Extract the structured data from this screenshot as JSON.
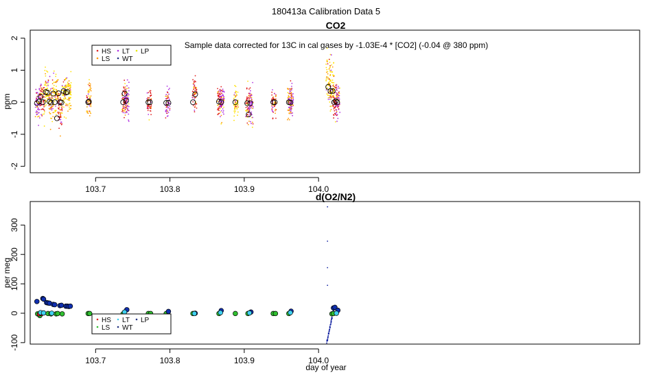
{
  "figure": {
    "title": "180413a   Calibration Data 5",
    "xlabel": "day of year"
  },
  "legend_items": [
    {
      "label": "HS",
      "color": "#e02020"
    },
    {
      "label": "LS",
      "color": "#30c030"
    },
    {
      "label": "LT",
      "color": "#40d0f0"
    },
    {
      "label": "WT",
      "color": "#203080"
    },
    {
      "label": "LP",
      "color": "#e8e800"
    }
  ],
  "chart_data": [
    {
      "type": "scatter",
      "title": "CO2",
      "ylabel": "ppm",
      "annotation": "Sample data corrected for 13C in cal gases by -1.03E-4 * [CO2] (-0.04 @ 380 ppm)",
      "xlim": [
        103.612,
        104.432
      ],
      "ylim": [
        -2.2,
        2.25
      ],
      "x_ticks": [
        103.7,
        103.8,
        103.9,
        104.0
      ],
      "y_ticks": [
        -2,
        -1,
        0,
        1,
        2
      ],
      "x_tick_labels": [
        "103.7",
        "103.8",
        "103.9",
        "104.0"
      ],
      "y_tick_labels": [
        "-2",
        "-1",
        "0",
        "1",
        "2"
      ],
      "point_colors": {
        "HS": "#e02020",
        "LS": "#ff9900",
        "LT": "#b030e0",
        "LP": "#ffe000"
      },
      "clusters": [
        {
          "x": 103.622,
          "center": 0.0,
          "spread": 0.55,
          "color": "#b030e0"
        },
        {
          "x": 103.628,
          "center": 0.1,
          "spread": 0.55,
          "color": "#e02020"
        },
        {
          "x": 103.634,
          "center": 0.3,
          "spread": 0.6,
          "color": "#ffe000"
        },
        {
          "x": 103.64,
          "center": 0.0,
          "spread": 0.5,
          "color": "#ff9900"
        },
        {
          "x": 103.646,
          "center": 0.25,
          "spread": 0.6,
          "color": "#ffe000"
        },
        {
          "x": 103.652,
          "center": -0.2,
          "spread": 0.6,
          "color": "#e02020"
        },
        {
          "x": 103.658,
          "center": 0.3,
          "spread": 0.6,
          "color": "#ffe000"
        },
        {
          "x": 103.664,
          "center": 0.3,
          "spread": 0.55,
          "color": "#ffe000"
        },
        {
          "x": 103.691,
          "center": 0.1,
          "spread": 0.45,
          "color": "#ff9900"
        },
        {
          "x": 103.738,
          "center": 0.05,
          "spread": 0.5,
          "color": "#e02020"
        },
        {
          "x": 103.742,
          "center": 0.1,
          "spread": 0.5,
          "color": "#b030e0"
        },
        {
          "x": 103.772,
          "center": 0.0,
          "spread": 0.4,
          "color": "#e02020"
        },
        {
          "x": 103.797,
          "center": 0.0,
          "spread": 0.45,
          "color": "#b030e0"
        },
        {
          "x": 103.833,
          "center": 0.2,
          "spread": 0.55,
          "color": "#e02020"
        },
        {
          "x": 103.867,
          "center": 0.0,
          "spread": 0.45,
          "color": "#e02020"
        },
        {
          "x": 103.87,
          "center": 0.0,
          "spread": 0.45,
          "color": "#b030e0"
        },
        {
          "x": 103.889,
          "center": 0.0,
          "spread": 0.4,
          "color": "#ffe000"
        },
        {
          "x": 103.905,
          "center": -0.1,
          "spread": 0.55,
          "color": "#e02020"
        },
        {
          "x": 103.909,
          "center": -0.1,
          "spread": 0.55,
          "color": "#b030e0"
        },
        {
          "x": 103.94,
          "center": 0.0,
          "spread": 0.4,
          "color": "#e02020"
        },
        {
          "x": 103.961,
          "center": 0.0,
          "spread": 0.45,
          "color": "#ff9900"
        },
        {
          "x": 103.963,
          "center": 0.0,
          "spread": 0.45,
          "color": "#b030e0"
        },
        {
          "x": 104.013,
          "center": 0.6,
          "spread": 0.8,
          "color": "#ffe000"
        },
        {
          "x": 104.018,
          "center": 0.5,
          "spread": 0.7,
          "color": "#ffe000"
        },
        {
          "x": 104.022,
          "center": 0.0,
          "spread": 0.5,
          "color": "#e02020"
        },
        {
          "x": 104.026,
          "center": 0.0,
          "spread": 0.5,
          "color": "#b030e0"
        }
      ],
      "means": [
        {
          "x": 103.621,
          "y": -0.03
        },
        {
          "x": 103.624,
          "y": 0.02
        },
        {
          "x": 103.626,
          "y": 0.17
        },
        {
          "x": 103.629,
          "y": 0.0
        },
        {
          "x": 103.633,
          "y": 0.32
        },
        {
          "x": 103.635,
          "y": 0.3
        },
        {
          "x": 103.638,
          "y": 0.02
        },
        {
          "x": 103.64,
          "y": -0.01
        },
        {
          "x": 103.643,
          "y": 0.27
        },
        {
          "x": 103.645,
          "y": 0.0
        },
        {
          "x": 103.648,
          "y": -0.5
        },
        {
          "x": 103.65,
          "y": 0.28
        },
        {
          "x": 103.652,
          "y": 0.0
        },
        {
          "x": 103.654,
          "y": -0.01
        },
        {
          "x": 103.657,
          "y": 0.35
        },
        {
          "x": 103.66,
          "y": 0.3
        },
        {
          "x": 103.662,
          "y": 0.32
        },
        {
          "x": 103.69,
          "y": 0.0
        },
        {
          "x": 103.691,
          "y": 0.02
        },
        {
          "x": 103.737,
          "y": 0.0
        },
        {
          "x": 103.739,
          "y": 0.27
        },
        {
          "x": 103.741,
          "y": 0.05
        },
        {
          "x": 103.771,
          "y": 0.0
        },
        {
          "x": 103.773,
          "y": 0.0
        },
        {
          "x": 103.795,
          "y": -0.02
        },
        {
          "x": 103.798,
          "y": -0.02
        },
        {
          "x": 103.831,
          "y": 0.0
        },
        {
          "x": 103.834,
          "y": 0.25
        },
        {
          "x": 103.866,
          "y": 0.02
        },
        {
          "x": 103.869,
          "y": 0.0
        },
        {
          "x": 103.888,
          "y": 0.0
        },
        {
          "x": 103.904,
          "y": -0.03
        },
        {
          "x": 103.906,
          "y": -0.38
        },
        {
          "x": 103.908,
          "y": -0.03
        },
        {
          "x": 103.939,
          "y": 0.0
        },
        {
          "x": 103.941,
          "y": 0.0
        },
        {
          "x": 103.96,
          "y": 0.0
        },
        {
          "x": 103.962,
          "y": -0.01
        },
        {
          "x": 104.013,
          "y": 0.48
        },
        {
          "x": 104.016,
          "y": 0.35
        },
        {
          "x": 104.019,
          "y": 0.35
        },
        {
          "x": 104.021,
          "y": 0.0
        },
        {
          "x": 104.023,
          "y": 0.03
        },
        {
          "x": 104.025,
          "y": 0.0
        }
      ]
    },
    {
      "type": "scatter",
      "title": "d(O2/N2)",
      "ylabel": "per meg",
      "xlim": [
        103.612,
        104.432
      ],
      "ylim": [
        -105,
        380
      ],
      "x_ticks": [
        103.7,
        103.8,
        103.9,
        104.0
      ],
      "y_ticks": [
        -100,
        0,
        100,
        200,
        300
      ],
      "x_tick_labels": [
        "103.7",
        "103.8",
        "103.9",
        "104.0"
      ],
      "y_tick_labels": [
        "-100",
        "0",
        "100",
        "200",
        "300"
      ],
      "wt_points": [
        {
          "x": 103.621,
          "y": 40
        },
        {
          "x": 103.629,
          "y": 50
        },
        {
          "x": 103.63,
          "y": 48
        },
        {
          "x": 103.634,
          "y": 36
        },
        {
          "x": 103.636,
          "y": 35
        },
        {
          "x": 103.638,
          "y": 34
        },
        {
          "x": 103.643,
          "y": 30
        },
        {
          "x": 103.645,
          "y": 29
        },
        {
          "x": 103.652,
          "y": 26
        },
        {
          "x": 103.654,
          "y": 27
        },
        {
          "x": 103.66,
          "y": 24
        },
        {
          "x": 103.662,
          "y": 24
        },
        {
          "x": 103.664,
          "y": 23
        },
        {
          "x": 103.666,
          "y": 24
        },
        {
          "x": 103.742,
          "y": 12
        },
        {
          "x": 103.798,
          "y": 6
        },
        {
          "x": 103.834,
          "y": 0
        },
        {
          "x": 103.869,
          "y": 9
        },
        {
          "x": 103.909,
          "y": 4
        },
        {
          "x": 103.963,
          "y": 7
        },
        {
          "x": 104.02,
          "y": 18
        },
        {
          "x": 104.022,
          "y": 20
        },
        {
          "x": 104.026,
          "y": 10
        }
      ],
      "ls_points": [
        {
          "x": 103.622,
          "y": -2
        },
        {
          "x": 103.625,
          "y": -8
        },
        {
          "x": 103.628,
          "y": 0
        },
        {
          "x": 103.636,
          "y": -1
        },
        {
          "x": 103.64,
          "y": -2
        },
        {
          "x": 103.647,
          "y": -2
        },
        {
          "x": 103.649,
          "y": -1
        },
        {
          "x": 103.655,
          "y": -2
        },
        {
          "x": 103.69,
          "y": -1
        },
        {
          "x": 103.692,
          "y": -1
        },
        {
          "x": 103.737,
          "y": -2
        },
        {
          "x": 103.771,
          "y": -1
        },
        {
          "x": 103.774,
          "y": -1
        },
        {
          "x": 103.795,
          "y": -1
        },
        {
          "x": 103.831,
          "y": -1
        },
        {
          "x": 103.866,
          "y": -1
        },
        {
          "x": 103.888,
          "y": -1
        },
        {
          "x": 103.905,
          "y": -1
        },
        {
          "x": 103.939,
          "y": -1
        },
        {
          "x": 103.942,
          "y": -1
        },
        {
          "x": 103.96,
          "y": -1
        },
        {
          "x": 104.018,
          "y": -2
        },
        {
          "x": 104.02,
          "y": -1
        }
      ],
      "lt_points": [
        {
          "x": 103.626,
          "y": 2
        },
        {
          "x": 103.63,
          "y": 1
        },
        {
          "x": 103.641,
          "y": 0
        },
        {
          "x": 103.739,
          "y": 4
        },
        {
          "x": 103.833,
          "y": -1
        },
        {
          "x": 103.868,
          "y": 2
        },
        {
          "x": 103.907,
          "y": 1
        },
        {
          "x": 103.962,
          "y": 2
        },
        {
          "x": 104.024,
          "y": 0
        }
      ],
      "hs_points": [
        {
          "x": 103.624,
          "y": -3
        },
        {
          "x": 103.627,
          "y": -2
        }
      ],
      "spike": {
        "x_start": 104.011,
        "x_end": 104.021,
        "y_start": -100,
        "y_end": 22,
        "peak_x": 104.012,
        "peak_y": 362
      }
    }
  ]
}
